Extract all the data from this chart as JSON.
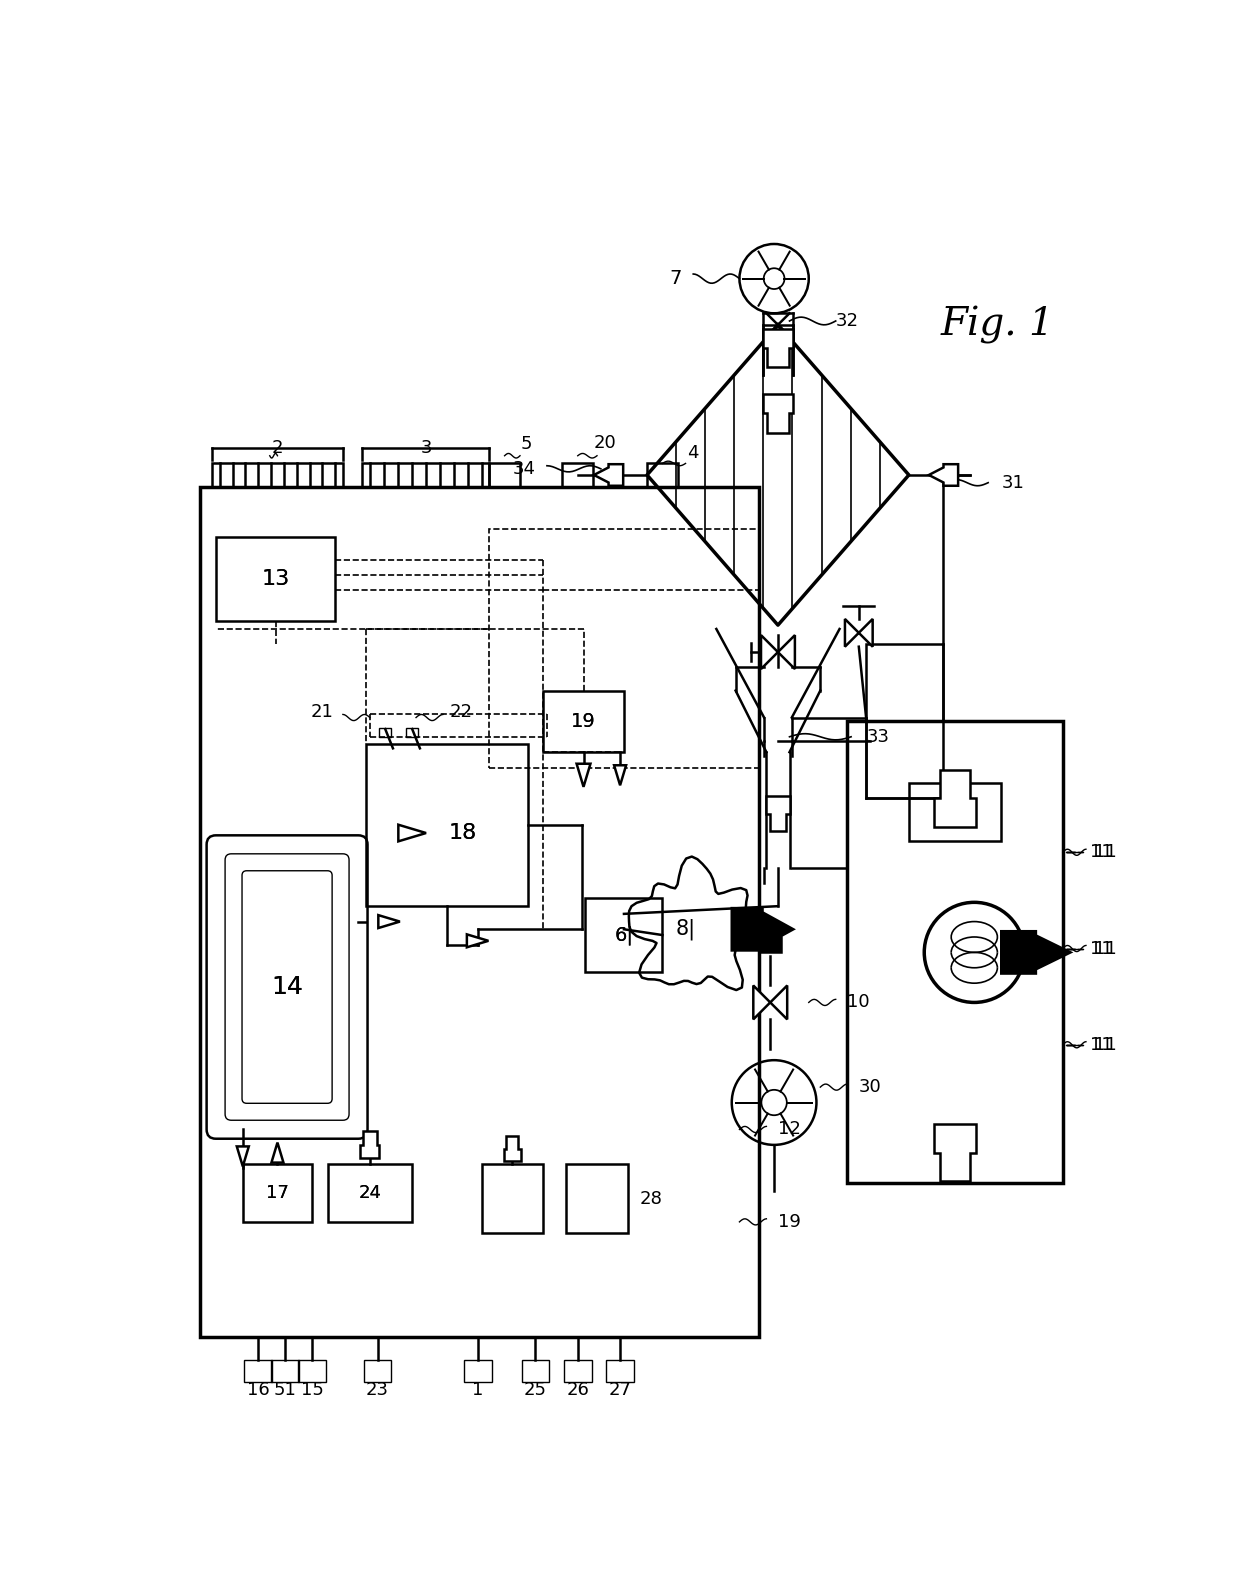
{
  "title": "Fig. 1",
  "bg_color": "#ffffff",
  "line_color": "#000000",
  "fig_width": 12.4,
  "fig_height": 15.84
}
